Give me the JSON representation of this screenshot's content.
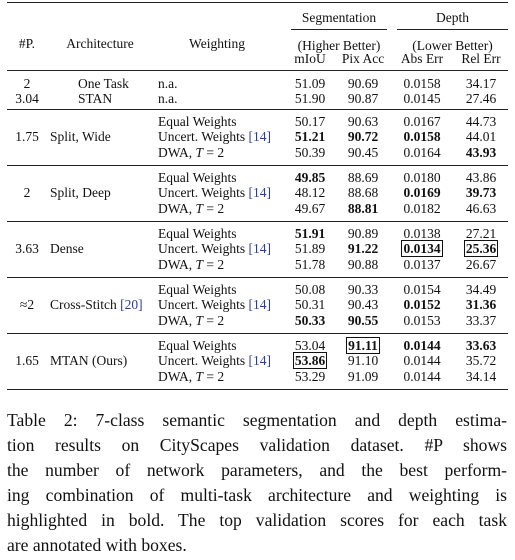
{
  "header": {
    "group_seg": "Segmentation",
    "group_depth": "Depth",
    "col_params": "#P.",
    "col_arch": "Architecture",
    "col_weighting": "Weighting",
    "seg_note": "(Higher Better)",
    "depth_note": "(Lower Better)",
    "miou": "mIoU",
    "pixacc": "Pix Acc",
    "abserr": "Abs Err",
    "relerr": "Rel Err"
  },
  "groups": [
    {
      "params": [
        "2",
        "3.04"
      ],
      "arch": [
        "One Task",
        "STAN"
      ],
      "arch_cite": [
        "",
        ""
      ],
      "rows": [
        {
          "w": "n.a.",
          "wcite": "",
          "miou": "51.09",
          "pix": "90.69",
          "abs": "0.0158",
          "rel": "34.17"
        },
        {
          "w": "n.a.",
          "wcite": "",
          "miou": "51.90",
          "pix": "90.87",
          "abs": "0.0145",
          "rel": "27.46"
        }
      ]
    },
    {
      "params": [
        "1.75"
      ],
      "arch": [
        "Split, Wide"
      ],
      "arch_cite": [
        ""
      ],
      "rows": [
        {
          "w": "Equal Weights",
          "wcite": "",
          "miou": "50.17",
          "pix": "90.63",
          "abs": "0.0167",
          "rel": "44.73"
        },
        {
          "w": "Uncert. Weights",
          "wcite": "[14]",
          "miou": "51.21",
          "pix": "90.72",
          "abs": "0.0158",
          "rel": "44.01"
        },
        {
          "w": "DWA, T = 2",
          "wcite": "",
          "miou": "50.39",
          "pix": "90.45",
          "abs": "0.0164",
          "rel": "43.93"
        }
      ]
    },
    {
      "params": [
        "2"
      ],
      "arch": [
        "Split, Deep"
      ],
      "arch_cite": [
        ""
      ],
      "rows": [
        {
          "w": "Equal Weights",
          "wcite": "",
          "miou": "49.85",
          "pix": "88.69",
          "abs": "0.0180",
          "rel": "43.86"
        },
        {
          "w": "Uncert. Weights",
          "wcite": "[14]",
          "miou": "48.12",
          "pix": "88.68",
          "abs": "0.0169",
          "rel": "39.73"
        },
        {
          "w": "DWA, T = 2",
          "wcite": "",
          "miou": "49.67",
          "pix": "88.81",
          "abs": "0.0182",
          "rel": "46.63"
        }
      ]
    },
    {
      "params": [
        "3.63"
      ],
      "arch": [
        "Dense"
      ],
      "arch_cite": [
        ""
      ],
      "rows": [
        {
          "w": "Equal Weights",
          "wcite": "",
          "miou": "51.91",
          "pix": "90.89",
          "abs": "0.0138",
          "rel": "27.21"
        },
        {
          "w": "Uncert. Weights",
          "wcite": "[14]",
          "miou": "51.89",
          "pix": "91.22",
          "abs": "0.0134",
          "rel": "25.36"
        },
        {
          "w": "DWA, T = 2",
          "wcite": "",
          "miou": "51.78",
          "pix": "90.88",
          "abs": "0.0137",
          "rel": "26.67"
        }
      ]
    },
    {
      "params": [
        "≈2"
      ],
      "arch": [
        "Cross-Stitch"
      ],
      "arch_cite": [
        "[20]"
      ],
      "rows": [
        {
          "w": "Equal Weights",
          "wcite": "",
          "miou": "50.08",
          "pix": "90.33",
          "abs": "0.0154",
          "rel": "34.49"
        },
        {
          "w": "Uncert. Weights",
          "wcite": "[14]",
          "miou": "50.31",
          "pix": "90.43",
          "abs": "0.0152",
          "rel": "31.36"
        },
        {
          "w": "DWA, T = 2",
          "wcite": "",
          "miou": "50.33",
          "pix": "90.55",
          "abs": "0.0153",
          "rel": "33.37"
        }
      ]
    },
    {
      "params": [
        "1.65"
      ],
      "arch": [
        "MTAN (Ours)"
      ],
      "arch_cite": [
        ""
      ],
      "rows": [
        {
          "w": "Equal Weights",
          "wcite": "",
          "miou": "53.04",
          "pix": "91.11",
          "abs": "0.0144",
          "rel": "33.63"
        },
        {
          "w": "Uncert. Weights",
          "wcite": "[14]",
          "miou": "53.86",
          "pix": "91.10",
          "abs": "0.0144",
          "rel": "35.72"
        },
        {
          "w": "DWA, T = 2",
          "wcite": "",
          "miou": "53.29",
          "pix": "91.09",
          "abs": "0.0144",
          "rel": "34.14"
        }
      ]
    }
  ],
  "caption_lines": [
    "Table 2: 7-class semantic segmentation and depth estima-",
    "tion results on CityScapes validation dataset. #P shows",
    "the number of network parameters, and the best perform-",
    "ing combination of multi-task architecture and weighting is",
    "highlighted in bold. The top validation scores for each task",
    "are annotated with boxes."
  ]
}
